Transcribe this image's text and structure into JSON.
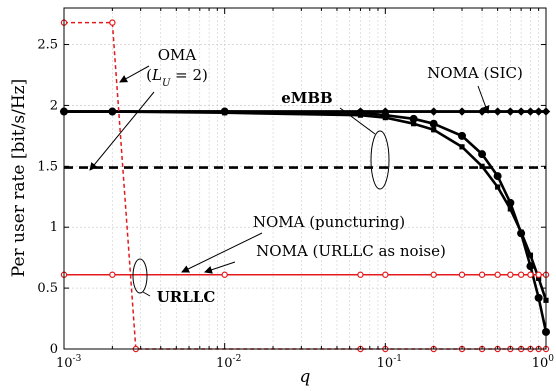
{
  "chart_data": {
    "type": "line",
    "xlabel": "q",
    "ylabel": "Per user rate [bit/s/Hz]",
    "xscale": "log",
    "xlim": [
      0.001,
      1
    ],
    "ylim": [
      0,
      2.8
    ],
    "x_tick_labels": [
      {
        "value": 0.001,
        "base": "10",
        "exp": "-3"
      },
      {
        "value": 0.01,
        "base": "10",
        "exp": "-2"
      },
      {
        "value": 0.1,
        "base": "10",
        "exp": "-1"
      },
      {
        "value": 1,
        "base": "10",
        "exp": "0"
      }
    ],
    "y_ticks": [
      0,
      0.5,
      1,
      1.5,
      2,
      2.5
    ],
    "y_tick_labels": [
      "0",
      "0.5",
      "1",
      "1.5",
      "2",
      "2.5"
    ],
    "grid": true,
    "series": [
      {
        "color": "#000000",
        "dash": "none",
        "marker": "none",
        "x": [
          0.001,
          1
        ],
        "y": [
          1.95,
          1.95
        ]
      },
      {
        "color": "#000000",
        "dash": "dashed",
        "marker": "none",
        "x": [
          0.001,
          1
        ],
        "y": [
          1.49,
          1.49
        ]
      },
      {
        "color": "#000000",
        "dash": "none",
        "marker": "diamond",
        "x": [
          0.001,
          0.002,
          0.01,
          0.07,
          0.1,
          0.2,
          0.3,
          0.4,
          0.5,
          0.6,
          0.7,
          0.8,
          0.9,
          1.0
        ],
        "y": [
          1.95,
          1.95,
          1.95,
          1.95,
          1.95,
          1.95,
          1.95,
          1.95,
          1.95,
          1.95,
          1.95,
          1.95,
          1.95,
          1.95
        ]
      },
      {
        "color": "#000000",
        "dash": "none",
        "marker": "circle",
        "x": [
          0.001,
          0.002,
          0.01,
          0.07,
          0.1,
          0.15,
          0.2,
          0.3,
          0.4,
          0.5,
          0.6,
          0.7,
          0.8,
          0.9,
          1.0
        ],
        "y": [
          1.95,
          1.95,
          1.95,
          1.94,
          1.92,
          1.89,
          1.85,
          1.75,
          1.6,
          1.42,
          1.2,
          0.95,
          0.68,
          0.42,
          0.14
        ]
      },
      {
        "color": "#000000",
        "dash": "none",
        "marker": "square",
        "x": [
          0.001,
          0.002,
          0.01,
          0.07,
          0.1,
          0.15,
          0.2,
          0.3,
          0.4,
          0.5,
          0.6,
          0.7,
          0.8,
          0.9,
          1.0
        ],
        "y": [
          1.95,
          1.95,
          1.94,
          1.92,
          1.9,
          1.85,
          1.8,
          1.66,
          1.5,
          1.33,
          1.15,
          0.96,
          0.77,
          0.58,
          0.4
        ]
      },
      {
        "color": "#e41a1c",
        "dash": "none",
        "marker": "circle-open",
        "x": [
          0.001,
          0.002,
          0.01,
          0.07,
          0.1,
          0.2,
          0.3,
          0.4,
          0.5,
          0.6,
          0.7,
          0.8,
          0.9,
          1.0
        ],
        "y": [
          0.61,
          0.61,
          0.61,
          0.61,
          0.61,
          0.61,
          0.61,
          0.61,
          0.61,
          0.61,
          0.61,
          0.61,
          0.61,
          0.61
        ]
      },
      {
        "color": "#e41a1c",
        "dash": "dashed",
        "marker": "circle-open",
        "x": [
          0.001,
          0.002,
          0.0028,
          0.07,
          0.1,
          0.2,
          0.3,
          0.4,
          0.5,
          0.6,
          0.7,
          0.8,
          0.9,
          1.0
        ],
        "y": [
          2.68,
          2.68,
          0,
          0,
          0,
          0,
          0,
          0,
          0,
          0,
          0,
          0,
          0,
          0
        ]
      }
    ],
    "annotations": [
      {
        "text": "OMA",
        "style": "normal"
      },
      {
        "text": "eMBB",
        "style": "bold"
      },
      {
        "text": "NOMA (SIC)",
        "style": "normal"
      },
      {
        "text": "NOMA (puncturing)",
        "style": "normal"
      },
      {
        "text": "NOMA (URLLC as noise)",
        "style": "normal"
      },
      {
        "text": "URLLC",
        "style": "bold"
      }
    ],
    "oma_param": {
      "prefix": "(",
      "var": "L",
      "sub": "U",
      "rest": " = 2)"
    }
  }
}
